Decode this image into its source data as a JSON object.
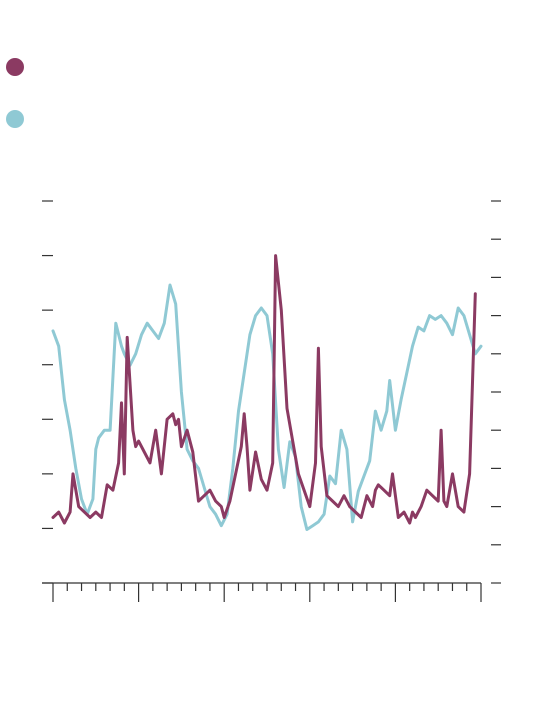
{
  "chart_data": {
    "type": "line",
    "title": "",
    "xlabel": "",
    "ylabel_left": "",
    "ylabel_right": "",
    "xlim": [
      0,
      300
    ],
    "ylim_left": [
      0,
      7
    ],
    "ylim_right": [
      0,
      10
    ],
    "x_major_ticks": [
      0,
      60,
      120,
      180,
      240,
      300
    ],
    "x_minor_step": 10,
    "left_ticks": [
      0,
      1,
      2,
      3,
      4,
      5,
      6,
      7
    ],
    "right_ticks": [
      0,
      1,
      2,
      3,
      4,
      5,
      6,
      7,
      8,
      9,
      10
    ],
    "grid": false,
    "legend_position": "top-left",
    "series": [
      {
        "name": "",
        "color": "#8b3a62",
        "axis": "left",
        "x": [
          0,
          4,
          8,
          12,
          14,
          18,
          22,
          26,
          30,
          34,
          38,
          42,
          46,
          48,
          50,
          52,
          56,
          58,
          60,
          64,
          68,
          72,
          76,
          80,
          84,
          86,
          88,
          90,
          94,
          98,
          102,
          106,
          110,
          114,
          118,
          120,
          124,
          128,
          132,
          134,
          136,
          138,
          142,
          146,
          150,
          154,
          156,
          160,
          164,
          168,
          172,
          176,
          180,
          184,
          186,
          188,
          192,
          196,
          200,
          204,
          208,
          212,
          216,
          220,
          224,
          226,
          228,
          232,
          236,
          238,
          242,
          246,
          250,
          252,
          254,
          258,
          262,
          266,
          270,
          272,
          274,
          276,
          280,
          284,
          288,
          292,
          296
        ],
        "y": [
          1.2,
          1.3,
          1.1,
          1.3,
          2.0,
          1.4,
          1.3,
          1.2,
          1.3,
          1.2,
          1.8,
          1.7,
          2.2,
          3.3,
          2.0,
          4.5,
          2.8,
          2.5,
          2.6,
          2.4,
          2.2,
          2.8,
          2.0,
          3.0,
          3.1,
          2.9,
          3.0,
          2.5,
          2.8,
          2.4,
          1.5,
          1.6,
          1.7,
          1.5,
          1.4,
          1.2,
          1.5,
          2.0,
          2.5,
          3.1,
          2.5,
          1.7,
          2.4,
          1.9,
          1.7,
          2.2,
          6.0,
          5.0,
          3.2,
          2.6,
          2.0,
          1.7,
          1.4,
          2.2,
          4.3,
          2.5,
          1.6,
          1.5,
          1.4,
          1.6,
          1.4,
          1.3,
          1.2,
          1.6,
          1.4,
          1.7,
          1.8,
          1.7,
          1.6,
          2.0,
          1.2,
          1.3,
          1.1,
          1.3,
          1.2,
          1.4,
          1.7,
          1.6,
          1.5,
          2.8,
          1.5,
          1.4,
          2.0,
          1.4,
          1.3,
          2.0,
          5.3
        ]
      },
      {
        "name": "",
        "color": "#8fc9d4",
        "axis": "right",
        "x": [
          0,
          4,
          8,
          12,
          16,
          20,
          24,
          28,
          30,
          32,
          36,
          40,
          44,
          48,
          50,
          54,
          58,
          62,
          66,
          70,
          74,
          78,
          82,
          86,
          90,
          94,
          98,
          102,
          106,
          110,
          114,
          118,
          122,
          126,
          130,
          134,
          138,
          142,
          146,
          150,
          154,
          158,
          162,
          166,
          170,
          174,
          178,
          182,
          186,
          190,
          194,
          198,
          202,
          206,
          210,
          214,
          218,
          222,
          226,
          230,
          234,
          236,
          240,
          244,
          248,
          252,
          256,
          260,
          264,
          268,
          272,
          276,
          280,
          284,
          288,
          292,
          296,
          300
        ],
        "y": [
          6.6,
          6.2,
          4.8,
          4.0,
          3.0,
          2.2,
          1.8,
          2.2,
          3.5,
          3.8,
          4.0,
          4.0,
          6.8,
          6.2,
          6.0,
          5.7,
          6.0,
          6.5,
          6.8,
          6.6,
          6.4,
          6.8,
          7.8,
          7.3,
          5.0,
          3.5,
          3.2,
          3.0,
          2.5,
          2.0,
          1.8,
          1.5,
          1.8,
          3.0,
          4.5,
          5.5,
          6.5,
          7.0,
          7.2,
          7.0,
          6.0,
          3.5,
          2.5,
          3.7,
          3.3,
          2.0,
          1.4,
          1.5,
          1.6,
          1.8,
          2.8,
          2.6,
          4.0,
          3.5,
          1.6,
          2.4,
          2.8,
          3.2,
          4.5,
          4.0,
          4.5,
          5.3,
          4.0,
          4.8,
          5.5,
          6.2,
          6.7,
          6.6,
          7.0,
          6.9,
          7.0,
          6.8,
          6.5,
          7.2,
          7.0,
          6.5,
          6.0,
          6.2
        ]
      }
    ]
  }
}
